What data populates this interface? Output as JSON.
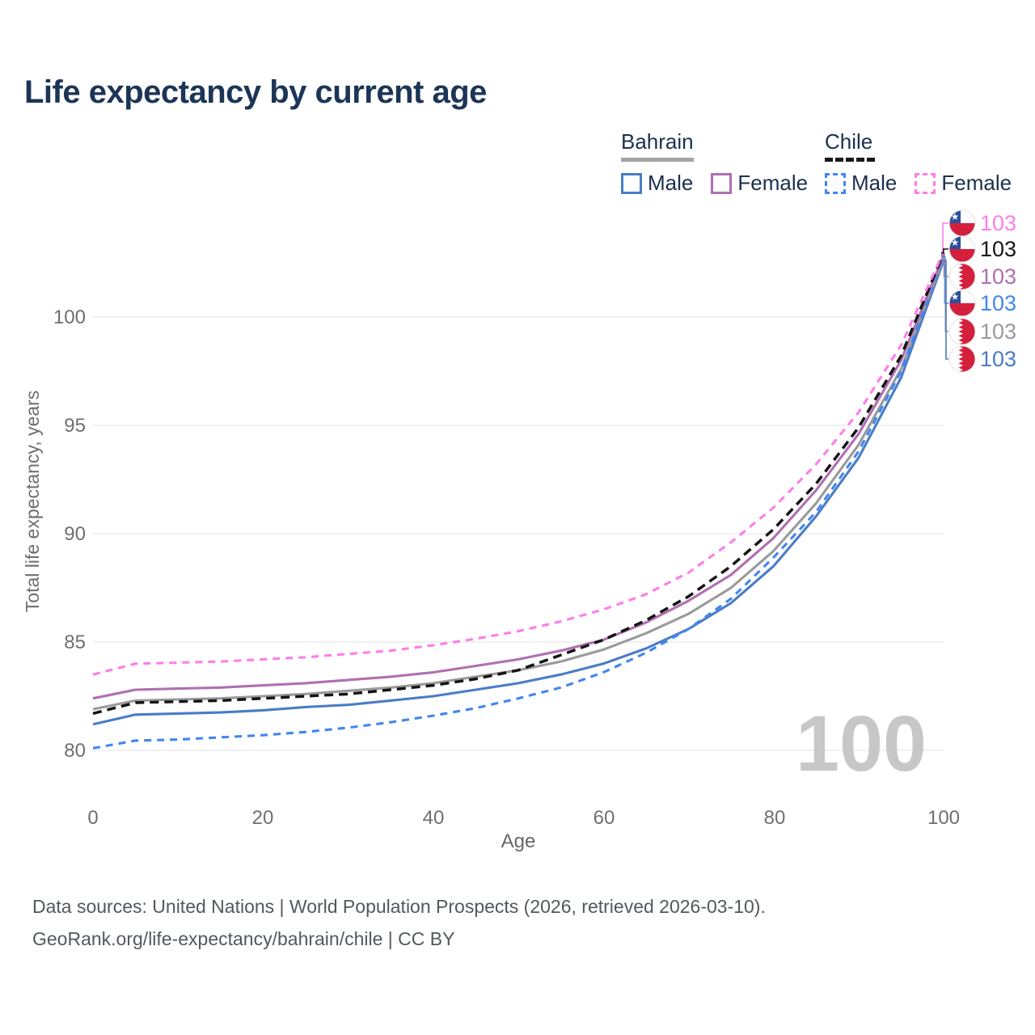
{
  "title": "Life expectancy by current age",
  "watermark": "100",
  "legend": {
    "groups": [
      {
        "country": "Bahrain",
        "line_style": "solid",
        "items": [
          {
            "label": "Male",
            "color": "#4a7cc7",
            "dash": false
          },
          {
            "label": "Female",
            "color": "#b06fb0",
            "dash": false
          }
        ]
      },
      {
        "country": "Chile",
        "line_style": "dashed",
        "items": [
          {
            "label": "Male",
            "color": "#4186f0",
            "dash": true
          },
          {
            "label": "Female",
            "color": "#ff7de9",
            "dash": true
          }
        ]
      }
    ]
  },
  "y_axis": {
    "title": "Total life expectancy, years",
    "tick_labels": [
      "100",
      "95",
      "90",
      "85",
      "80"
    ]
  },
  "x_axis": {
    "title": "Age",
    "tick_labels": [
      "0",
      "20",
      "40",
      "60",
      "80",
      "100"
    ]
  },
  "end_labels": [
    {
      "value": "103",
      "color": "#ff7de9",
      "flag": "chile",
      "series": "Chile Female"
    },
    {
      "value": "103",
      "color": "#151515",
      "flag": "chile",
      "series": "Chile Both sexes"
    },
    {
      "value": "103",
      "color": "#b06fb0",
      "flag": "bahrain",
      "series": "Bahrain Female"
    },
    {
      "value": "103",
      "color": "#4186f0",
      "flag": "chile",
      "series": "Chile Male"
    },
    {
      "value": "103",
      "color": "#9a9a9a",
      "flag": "bahrain",
      "series": "Bahrain Both sexes"
    },
    {
      "value": "103",
      "color": "#4a7cc7",
      "flag": "bahrain",
      "series": "Bahrain Male"
    }
  ],
  "footer": {
    "line1": "Data sources: United Nations | World Population Prospects (2026, retrieved 2026-03-10).",
    "line2": "GeoRank.org/life-expectancy/bahrain/chile | CC BY"
  },
  "chart_data": {
    "type": "line",
    "title": "Life expectancy by current age",
    "xlabel": "Age",
    "ylabel": "Total life expectancy, years",
    "x": [
      0,
      5,
      10,
      15,
      20,
      25,
      30,
      35,
      40,
      45,
      50,
      55,
      60,
      65,
      70,
      75,
      80,
      85,
      90,
      95,
      100
    ],
    "xlim": [
      0,
      100
    ],
    "ylim_shown": [
      80,
      100
    ],
    "grid": "horizontal",
    "legend_position": "top-right",
    "series": [
      {
        "name": "Chile Female",
        "country": "Chile",
        "sex": "Female",
        "color": "#ff7de9",
        "dash": true,
        "end_label": "103",
        "values": [
          83.5,
          84.0,
          84.05,
          84.1,
          84.2,
          84.3,
          84.45,
          84.6,
          84.85,
          85.15,
          85.5,
          85.95,
          86.5,
          87.2,
          88.2,
          89.6,
          91.2,
          93.2,
          95.6,
          98.7,
          103.0
        ]
      },
      {
        "name": "Chile Both sexes",
        "country": "Chile",
        "sex": "Both",
        "color": "#151515",
        "dash": true,
        "end_label": "103",
        "values": [
          81.7,
          82.2,
          82.25,
          82.3,
          82.4,
          82.5,
          82.6,
          82.8,
          83.0,
          83.3,
          83.7,
          84.4,
          85.1,
          86.0,
          87.1,
          88.5,
          90.2,
          92.3,
          94.9,
          98.2,
          102.95
        ]
      },
      {
        "name": "Bahrain Female",
        "country": "Bahrain",
        "sex": "Female",
        "color": "#b06fb0",
        "dash": false,
        "end_label": "103",
        "values": [
          82.4,
          82.8,
          82.85,
          82.9,
          83.0,
          83.1,
          83.25,
          83.4,
          83.6,
          83.9,
          84.2,
          84.6,
          85.1,
          85.9,
          86.9,
          88.1,
          89.8,
          92.0,
          94.6,
          98.0,
          102.85
        ]
      },
      {
        "name": "Chile Male",
        "country": "Chile",
        "sex": "Male",
        "color": "#4186f0",
        "dash": true,
        "end_label": "103",
        "values": [
          80.1,
          80.45,
          80.5,
          80.6,
          80.7,
          80.85,
          81.05,
          81.3,
          81.6,
          81.95,
          82.4,
          82.9,
          83.6,
          84.5,
          85.6,
          87.0,
          88.9,
          91.0,
          93.8,
          97.5,
          102.8
        ]
      },
      {
        "name": "Bahrain Both sexes",
        "country": "Bahrain",
        "sex": "Both",
        "color": "#9a9a9a",
        "dash": false,
        "end_label": "103",
        "values": [
          81.9,
          82.3,
          82.35,
          82.4,
          82.5,
          82.6,
          82.75,
          82.9,
          83.1,
          83.4,
          83.7,
          84.1,
          84.65,
          85.4,
          86.3,
          87.5,
          89.2,
          91.4,
          94.1,
          97.6,
          102.7
        ]
      },
      {
        "name": "Bahrain Male",
        "country": "Bahrain",
        "sex": "Male",
        "color": "#4a7cc7",
        "dash": false,
        "end_label": "103",
        "values": [
          81.2,
          81.65,
          81.7,
          81.75,
          81.85,
          82.0,
          82.1,
          82.3,
          82.5,
          82.8,
          83.1,
          83.5,
          84.0,
          84.7,
          85.6,
          86.8,
          88.5,
          90.8,
          93.5,
          97.2,
          102.6
        ]
      }
    ]
  }
}
